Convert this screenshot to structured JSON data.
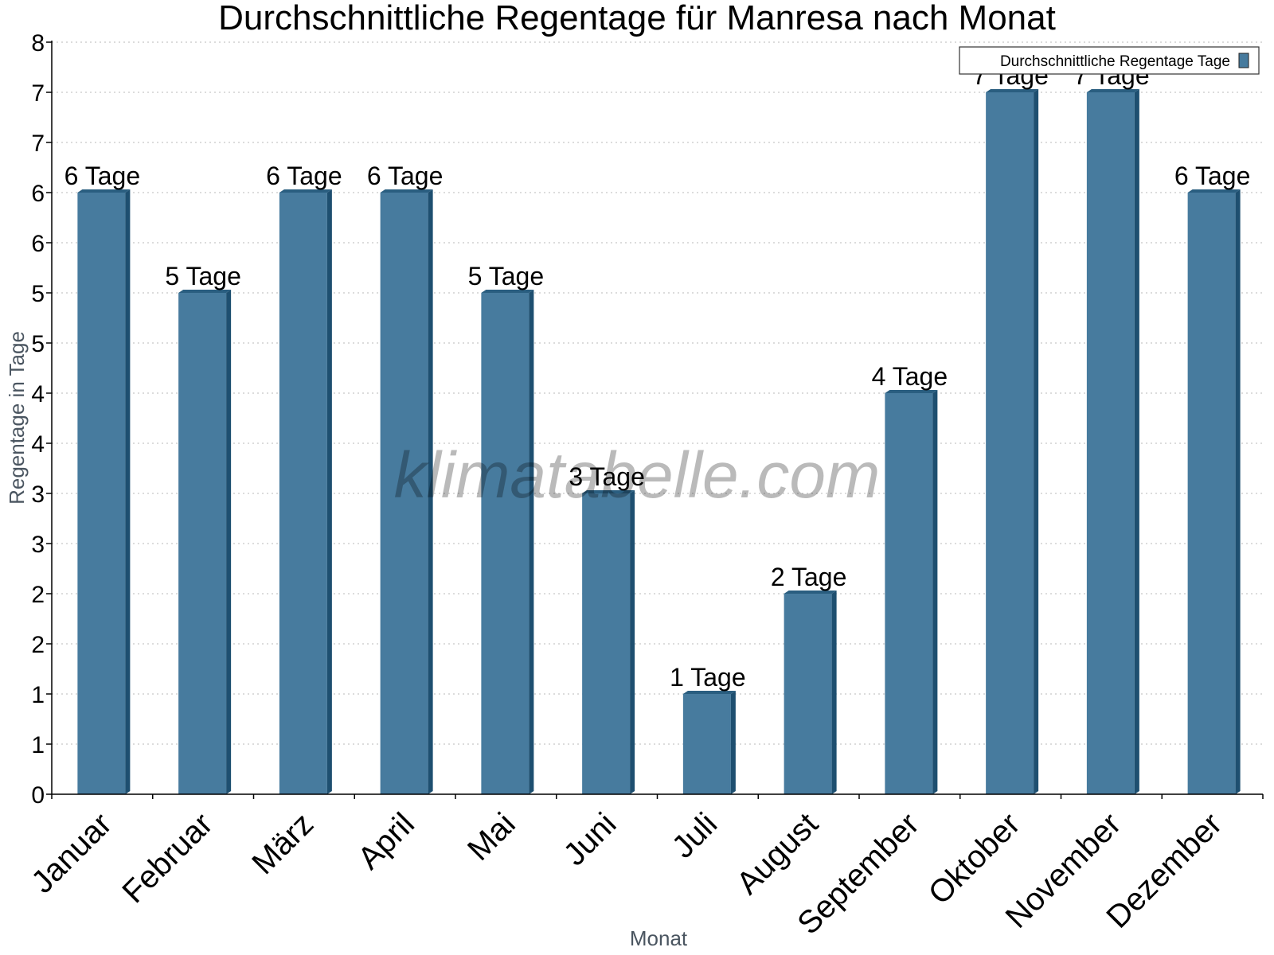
{
  "colors": {
    "bar": "#477b9e",
    "bar_side": "#1e4f70",
    "bar_top": "#2a5e80",
    "grid": "#c8c8c8",
    "axis": "#000000"
  },
  "watermark": "klimatabelle.com",
  "chart_data": {
    "type": "bar",
    "title": "Durchschnittliche Regentage für Manresa nach Monat",
    "xlabel": "Monat",
    "ylabel": "Regentage in Tage",
    "categories": [
      "Januar",
      "Februar",
      "März",
      "April",
      "Mai",
      "Juni",
      "Juli",
      "August",
      "September",
      "Oktober",
      "November",
      "Dezember"
    ],
    "series": [
      {
        "name": "Durchschnittliche Regentage Tage",
        "values": [
          6,
          5,
          6,
          6,
          5,
          3,
          1,
          2,
          4,
          7,
          7,
          6
        ],
        "data_labels": [
          "6 Tage",
          "5 Tage",
          "6 Tage",
          "6 Tage",
          "5 Tage",
          "3 Tage",
          "1 Tage",
          "2 Tage",
          "4 Tage",
          "7 Tage",
          "7 Tage",
          "6 Tage"
        ]
      }
    ],
    "ylim": [
      0,
      7.5
    ],
    "yticks": [
      0,
      0.5,
      1,
      1.5,
      2,
      2.5,
      3,
      3.5,
      4,
      4.5,
      5,
      5.5,
      6,
      6.5,
      7,
      7.5
    ],
    "ytick_labels": [
      "0",
      "1",
      "1",
      "2",
      "2",
      "3",
      "3",
      "4",
      "4",
      "5",
      "5",
      "6",
      "6",
      "7",
      "7",
      "8"
    ],
    "grid": true,
    "legend_position": "top-right"
  }
}
